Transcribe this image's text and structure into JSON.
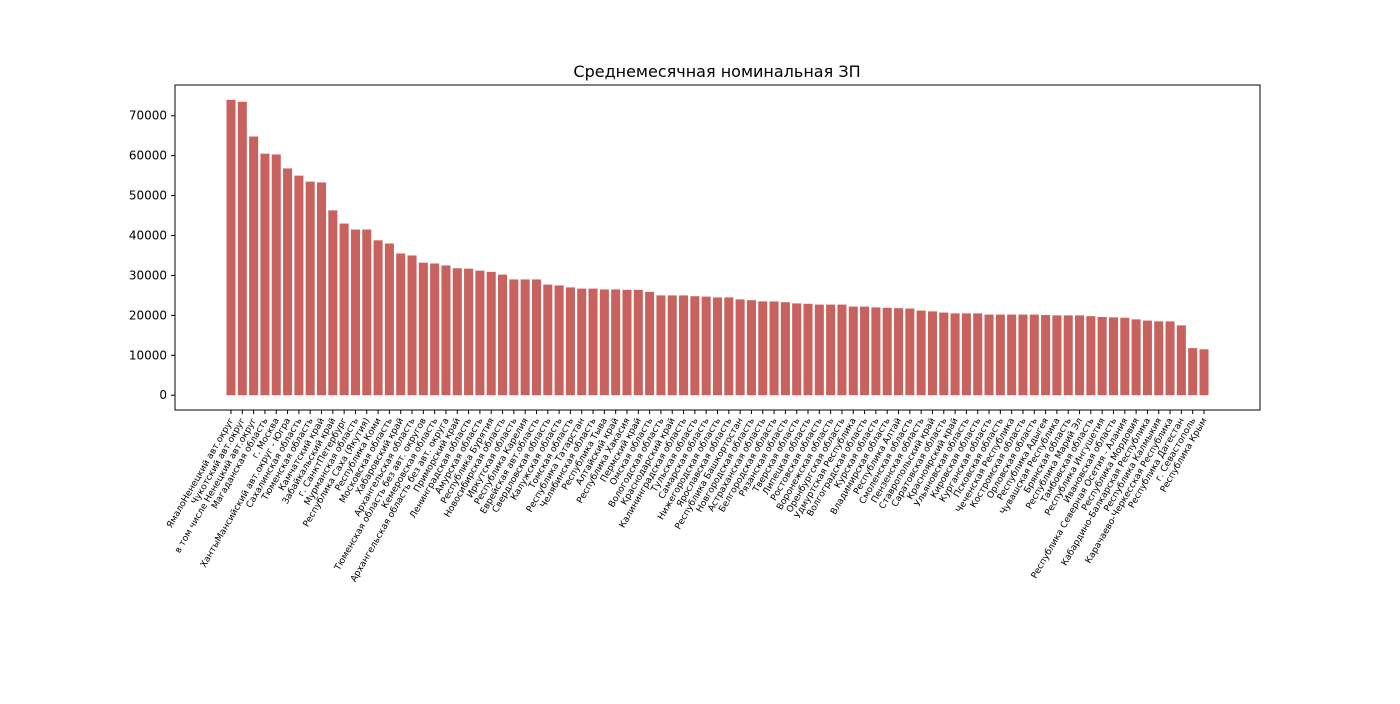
{
  "chart_data": {
    "type": "bar",
    "title": "Среднемесячная номинальная ЗП",
    "categories": [
      "ЯмалоНенецкий авт.округ",
      "Чукотский авт.округ",
      "в том числе Ненецкий авт.округ",
      "Магаданская область",
      "г. Москва",
      "ХантыМансийский авт.округ - Югра",
      "Сахалинская область",
      "Тюменская область",
      "Камчатский край",
      "Забайкальский край",
      "г. СанктПетербург",
      "Мурманская область",
      "Республика Саха (Якутия)",
      "Республика Коми",
      "Московская область",
      "Хабаровский край",
      "Архангельская область",
      "Тюменская область без авт. округов",
      "Кемеровская область",
      "Архангельская область без авт. округа",
      "Приморский край",
      "Ленинградская область",
      "Амурская область",
      "Республика Бурятия",
      "Новосибирская область",
      "Иркутская область",
      "Республика Карелия",
      "Еврейская авт.область",
      "Свердловская область",
      "Калужская область",
      "Томская область",
      "Республика Татарстан",
      "Челябинская область",
      "Республика Тыва",
      "Алтайский край",
      "Республика Хакасия",
      "Пермский край",
      "Омская область",
      "Вологодская область",
      "Краснодарский край",
      "Калининградская область",
      "Тульская область",
      "Самарская область",
      "Нижегородская область",
      "Ярославская область",
      "Республика Башкортостан",
      "Новгородская область",
      "Астраханская область",
      "Белгородская область",
      "Рязанская область",
      "Тверская область",
      "Липецкая область",
      "Ростовская область",
      "Воронежская область",
      "Оренбургская область",
      "Удмуртская Республика",
      "Волгоградская область",
      "Курская область",
      "Владимирская область",
      "Республика Алтай",
      "Смоленская область",
      "Пензенская область",
      "Ставропольский край",
      "Саратовская область",
      "Красноярский край",
      "Ульяновская область",
      "Кировская область",
      "Курганская область",
      "Псковская область",
      "Чеченская Республика",
      "Костромская область",
      "Орловская область",
      "Республика Адыгея",
      "Чувашская Республика",
      "Брянская область",
      "Республика Марий Эл",
      "Тамбовская область",
      "Республика Ингушетия",
      "Ивановская область",
      "Республика Северная Осетия - Алания",
      "Республика Мордовия",
      "Кабардино-Балкарская Республика",
      "Республика Калмыкия",
      "Карачаево-Черкесская Республика",
      "Республика Дагестан",
      "г. Севастополь",
      "Республика Крым"
    ],
    "values": [
      74000,
      73500,
      64800,
      60500,
      60300,
      56800,
      55000,
      53500,
      53300,
      46300,
      43000,
      41500,
      41500,
      38800,
      38000,
      35500,
      35000,
      33200,
      33000,
      32500,
      31800,
      31700,
      31200,
      30900,
      30200,
      29000,
      29000,
      29000,
      27700,
      27500,
      27000,
      26700,
      26700,
      26500,
      26500,
      26400,
      26400,
      25900,
      25000,
      25000,
      25000,
      24800,
      24700,
      24500,
      24500,
      24000,
      23800,
      23500,
      23500,
      23300,
      23000,
      22900,
      22700,
      22700,
      22700,
      22200,
      22200,
      22000,
      21900,
      21800,
      21700,
      21200,
      21000,
      20700,
      20500,
      20500,
      20500,
      20200,
      20200,
      20200,
      20200,
      20200,
      20100,
      20000,
      20000,
      20000,
      19800,
      19600,
      19500,
      19400,
      19000,
      18700,
      18500,
      18500,
      17500,
      11800,
      11500
    ],
    "color": "#c8625f",
    "ylim": [
      -3700,
      77700
    ],
    "yticks": [
      0,
      10000,
      20000,
      30000,
      40000,
      50000,
      60000,
      70000
    ]
  }
}
